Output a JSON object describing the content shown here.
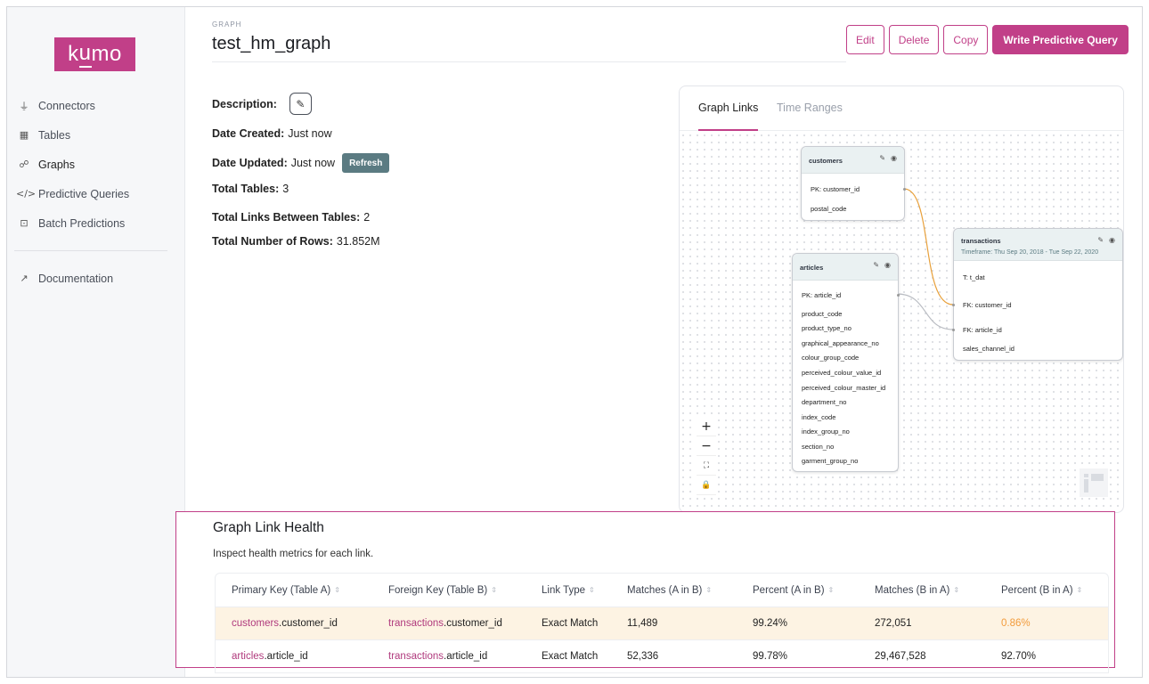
{
  "colors": {
    "brand": "#c13f88",
    "edge_pk": "#e8a03a",
    "edge_fk": "#b9bcc2",
    "warn": "#f29b3b"
  },
  "logo": {
    "text_a": "k",
    "text_b": "u",
    "text_c": "mo"
  },
  "sidebar": {
    "items": [
      {
        "label": "Connectors",
        "icon": "plug-icon"
      },
      {
        "label": "Tables",
        "icon": "table-icon"
      },
      {
        "label": "Graphs",
        "icon": "graph-icon"
      },
      {
        "label": "Predictive Queries",
        "icon": "code-icon"
      },
      {
        "label": "Batch Predictions",
        "icon": "batch-icon"
      }
    ],
    "docs": {
      "label": "Documentation",
      "icon": "external-link-icon"
    }
  },
  "header": {
    "crumb": "GRAPH",
    "title": "test_hm_graph",
    "buttons": {
      "edit": "Edit",
      "delete": "Delete",
      "copy": "Copy",
      "write": "Write Predictive Query"
    }
  },
  "meta": {
    "description_label": "Description:",
    "date_created_label": "Date Created:",
    "date_created": "Just now",
    "date_updated_label": "Date Updated:",
    "date_updated": "Just now",
    "refresh": "Refresh",
    "total_tables_label": "Total Tables:",
    "total_tables": "3",
    "total_links_label": "Total Links Between Tables:",
    "total_links": "2",
    "total_rows_label": "Total Number of Rows:",
    "total_rows": "31.852M"
  },
  "graph": {
    "tabs": [
      "Graph Links",
      "Time Ranges"
    ],
    "nodes": {
      "customers": {
        "name": "customers",
        "columns": [
          "PK: customer_id",
          "postal_code"
        ]
      },
      "articles": {
        "name": "articles",
        "columns": [
          "PK: article_id",
          "product_code",
          "product_type_no",
          "graphical_appearance_no",
          "colour_group_code",
          "perceived_colour_value_id",
          "perceived_colour_master_id",
          "department_no",
          "index_code",
          "index_group_no",
          "section_no",
          "garment_group_no"
        ]
      },
      "transactions": {
        "name": "transactions",
        "timeframe": "Timeframe: Thu Sep 20, 2018 - Tue Sep 22, 2020",
        "columns": [
          "T: t_dat",
          "FK: customer_id",
          "FK: article_id",
          "sales_channel_id"
        ]
      }
    },
    "zoom": {
      "plus": "+",
      "minus": "−",
      "fit": "⛶",
      "lock": "🔒"
    }
  },
  "health": {
    "title": "Graph Link Health",
    "subtitle": "Inspect health metrics for each link.",
    "columns": [
      "Primary Key (Table A)",
      "Foreign Key (Table B)",
      "Link Type",
      "Matches (A in B)",
      "Percent (A in B)",
      "Matches (B in A)",
      "Percent (B in A)"
    ],
    "rows": [
      {
        "pk_table": "customers",
        "pk_col": ".customer_id",
        "fk_table": "transactions",
        "fk_col": ".customer_id",
        "type": "Exact Match",
        "m_ab": "11,489",
        "p_ab": "99.24%",
        "m_ba": "272,051",
        "p_ba": "0.86%"
      },
      {
        "pk_table": "articles",
        "pk_col": ".article_id",
        "fk_table": "transactions",
        "fk_col": ".article_id",
        "type": "Exact Match",
        "m_ab": "52,336",
        "p_ab": "99.78%",
        "m_ba": "29,467,528",
        "p_ba": "92.70%"
      }
    ]
  }
}
